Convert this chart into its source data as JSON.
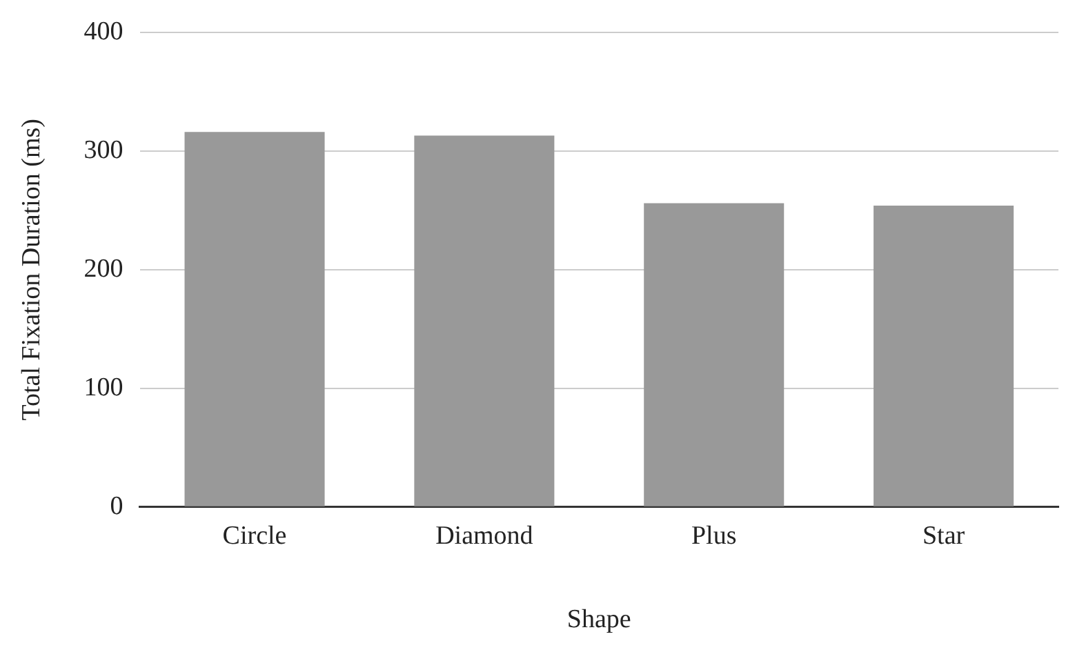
{
  "chart_data": {
    "type": "bar",
    "xlabel": "Shape",
    "ylabel": "Total Fixation Duration (ms)",
    "categories": [
      "Circle",
      "Diamond",
      "Plus",
      "Star"
    ],
    "values": [
      316,
      313,
      256,
      254
    ],
    "color": "#999999",
    "ylim": [
      0,
      400
    ],
    "yticks": [
      0,
      100,
      200,
      300,
      400
    ],
    "grid": "y"
  }
}
